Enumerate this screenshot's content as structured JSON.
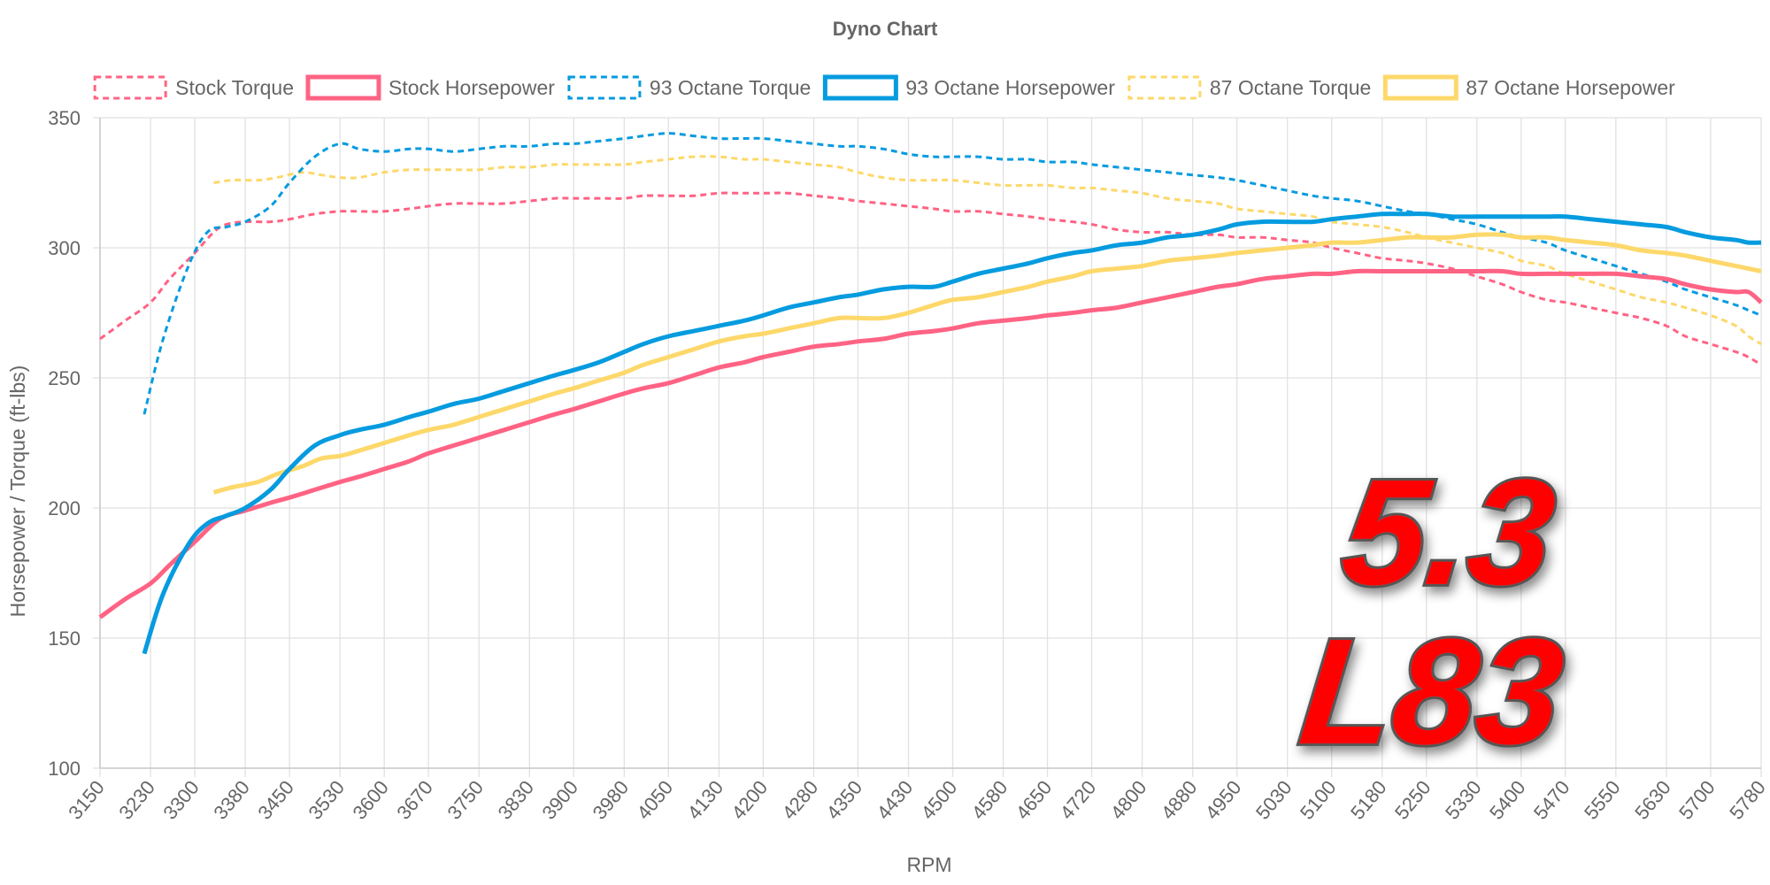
{
  "colors": {
    "stock": "#ff6384",
    "octane93": "#059bdf",
    "octane87": "#fdd86a",
    "badge_fill": "#ff0000",
    "badge_outline": "#555555",
    "text": "#666666"
  },
  "badge": {
    "line1": "5.3",
    "line2": "L83"
  },
  "chart_data": {
    "type": "line",
    "title": "Dyno Chart",
    "xlabel": "RPM",
    "ylabel": "Horsepower / Torque (ft-lbs)",
    "ylim": [
      100,
      350
    ],
    "yticks": [
      100,
      150,
      200,
      250,
      300,
      350
    ],
    "grid": true,
    "legend_position": "top",
    "categories": [
      "3150",
      "3230",
      "3300",
      "3380",
      "3450",
      "3530",
      "3600",
      "3670",
      "3750",
      "3830",
      "3900",
      "3980",
      "4050",
      "4130",
      "4200",
      "4280",
      "4350",
      "4430",
      "4500",
      "4580",
      "4650",
      "4720",
      "4800",
      "4880",
      "4950",
      "5030",
      "5100",
      "5180",
      "5250",
      "5330",
      "5400",
      "5470",
      "5550",
      "5630",
      "5700",
      "5780"
    ],
    "series": [
      {
        "name": "Stock Torque",
        "color_key": "stock",
        "dashed": true,
        "x": [
          3150,
          3190,
          3230,
          3260,
          3300,
          3330,
          3350,
          3380,
          3420,
          3450,
          3490,
          3530,
          3560,
          3600,
          3640,
          3670,
          3710,
          3750,
          3790,
          3830,
          3870,
          3900,
          3940,
          3980,
          4010,
          4050,
          4090,
          4130,
          4170,
          4200,
          4240,
          4280,
          4320,
          4350,
          4390,
          4430,
          4470,
          4500,
          4540,
          4580,
          4620,
          4650,
          4690,
          4720,
          4760,
          4800,
          4840,
          4880,
          4920,
          4950,
          4990,
          5030,
          5070,
          5100,
          5140,
          5180,
          5220,
          5250,
          5290,
          5330,
          5370,
          5400,
          5440,
          5470,
          5510,
          5550,
          5590,
          5630,
          5660,
          5700,
          5740,
          5760,
          5780
        ],
        "values": [
          265,
          272,
          279,
          288,
          298,
          306,
          309,
          310,
          310,
          311,
          313,
          314,
          314,
          314,
          315,
          316,
          317,
          317,
          317,
          318,
          319,
          319,
          319,
          319,
          320,
          320,
          320,
          321,
          321,
          321,
          321,
          320,
          319,
          318,
          317,
          316,
          315,
          314,
          314,
          313,
          312,
          311,
          310,
          309,
          307,
          306,
          306,
          305,
          305,
          304,
          304,
          303,
          302,
          300,
          298,
          296,
          295,
          294,
          292,
          289,
          286,
          283,
          280,
          279,
          277,
          275,
          273,
          270,
          266,
          263,
          260,
          258,
          255
        ]
      },
      {
        "name": "Stock Horsepower",
        "color_key": "stock",
        "dashed": false,
        "x": [
          3150,
          3190,
          3230,
          3260,
          3300,
          3330,
          3350,
          3380,
          3420,
          3450,
          3490,
          3530,
          3560,
          3600,
          3640,
          3670,
          3710,
          3750,
          3790,
          3830,
          3870,
          3900,
          3940,
          3980,
          4010,
          4050,
          4090,
          4130,
          4170,
          4200,
          4240,
          4280,
          4320,
          4350,
          4390,
          4430,
          4470,
          4500,
          4540,
          4580,
          4620,
          4650,
          4690,
          4720,
          4760,
          4800,
          4840,
          4880,
          4920,
          4950,
          4990,
          5030,
          5070,
          5100,
          5140,
          5180,
          5220,
          5250,
          5290,
          5330,
          5370,
          5400,
          5440,
          5470,
          5510,
          5550,
          5590,
          5630,
          5660,
          5700,
          5740,
          5760,
          5780
        ],
        "values": [
          158,
          165,
          171,
          178,
          187,
          194,
          197,
          199,
          202,
          204,
          207,
          210,
          212,
          215,
          218,
          221,
          224,
          227,
          230,
          233,
          236,
          238,
          241,
          244,
          246,
          248,
          251,
          254,
          256,
          258,
          260,
          262,
          263,
          264,
          265,
          267,
          268,
          269,
          271,
          272,
          273,
          274,
          275,
          276,
          277,
          279,
          281,
          283,
          285,
          286,
          288,
          289,
          290,
          290,
          291,
          291,
          291,
          291,
          291,
          291,
          291,
          290,
          290,
          290,
          290,
          290,
          289,
          288,
          286,
          284,
          283,
          283,
          279
        ]
      },
      {
        "name": "93 Octane Torque",
        "color_key": "octane93",
        "dashed": true,
        "x": [
          3220,
          3250,
          3290,
          3320,
          3350,
          3380,
          3420,
          3450,
          3490,
          3530,
          3560,
          3600,
          3640,
          3670,
          3710,
          3750,
          3790,
          3830,
          3870,
          3900,
          3940,
          3980,
          4010,
          4050,
          4090,
          4130,
          4170,
          4200,
          4240,
          4280,
          4320,
          4350,
          4390,
          4430,
          4470,
          4500,
          4540,
          4580,
          4620,
          4650,
          4690,
          4720,
          4760,
          4800,
          4840,
          4880,
          4920,
          4950,
          4990,
          5030,
          5070,
          5100,
          5140,
          5180,
          5220,
          5250,
          5290,
          5330,
          5370,
          5400,
          5440,
          5470,
          5510,
          5550,
          5590,
          5630,
          5660,
          5700,
          5740,
          5760,
          5780
        ],
        "values": [
          236,
          265,
          293,
          306,
          308,
          310,
          316,
          325,
          335,
          340,
          338,
          337,
          338,
          338,
          337,
          338,
          339,
          339,
          340,
          340,
          341,
          342,
          343,
          344,
          343,
          342,
          342,
          342,
          341,
          340,
          339,
          339,
          338,
          336,
          335,
          335,
          335,
          334,
          334,
          333,
          333,
          332,
          331,
          330,
          329,
          328,
          327,
          326,
          324,
          322,
          320,
          319,
          318,
          316,
          314,
          313,
          311,
          309,
          306,
          304,
          302,
          299,
          296,
          293,
          290,
          287,
          284,
          281,
          278,
          276,
          274
        ]
      },
      {
        "name": "93 Octane Horsepower",
        "color_key": "octane93",
        "dashed": false,
        "x": [
          3220,
          3250,
          3290,
          3320,
          3350,
          3380,
          3420,
          3450,
          3490,
          3530,
          3560,
          3600,
          3640,
          3670,
          3710,
          3750,
          3790,
          3830,
          3870,
          3900,
          3940,
          3980,
          4010,
          4050,
          4090,
          4130,
          4170,
          4200,
          4240,
          4280,
          4320,
          4350,
          4390,
          4430,
          4470,
          4500,
          4540,
          4580,
          4620,
          4650,
          4690,
          4720,
          4760,
          4800,
          4840,
          4880,
          4920,
          4950,
          4990,
          5030,
          5070,
          5100,
          5140,
          5180,
          5220,
          5250,
          5290,
          5330,
          5370,
          5400,
          5440,
          5470,
          5510,
          5550,
          5590,
          5630,
          5660,
          5700,
          5740,
          5760,
          5780
        ],
        "values": [
          144,
          167,
          186,
          194,
          197,
          200,
          207,
          215,
          224,
          228,
          230,
          232,
          235,
          237,
          240,
          242,
          245,
          248,
          251,
          253,
          256,
          260,
          263,
          266,
          268,
          270,
          272,
          274,
          277,
          279,
          281,
          282,
          284,
          285,
          285,
          287,
          290,
          292,
          294,
          296,
          298,
          299,
          301,
          302,
          304,
          305,
          307,
          309,
          310,
          310,
          310,
          311,
          312,
          313,
          313,
          313,
          312,
          312,
          312,
          312,
          312,
          312,
          311,
          310,
          309,
          308,
          306,
          304,
          303,
          302,
          302
        ]
      },
      {
        "name": "87 Octane Torque",
        "color_key": "octane87",
        "dashed": true,
        "x": [
          3330,
          3360,
          3400,
          3430,
          3470,
          3500,
          3530,
          3560,
          3600,
          3640,
          3670,
          3710,
          3750,
          3790,
          3830,
          3870,
          3900,
          3940,
          3980,
          4010,
          4050,
          4090,
          4130,
          4170,
          4200,
          4240,
          4280,
          4320,
          4350,
          4390,
          4430,
          4470,
          4500,
          4540,
          4580,
          4620,
          4650,
          4690,
          4720,
          4760,
          4800,
          4840,
          4880,
          4920,
          4950,
          4990,
          5030,
          5070,
          5100,
          5140,
          5180,
          5220,
          5250,
          5290,
          5330,
          5370,
          5400,
          5440,
          5470,
          5510,
          5550,
          5590,
          5630,
          5660,
          5700,
          5740,
          5760,
          5780
        ],
        "values": [
          325,
          326,
          326,
          327,
          329,
          328,
          327,
          327,
          329,
          330,
          330,
          330,
          330,
          331,
          331,
          332,
          332,
          332,
          332,
          333,
          334,
          335,
          335,
          334,
          334,
          333,
          332,
          331,
          329,
          327,
          326,
          326,
          326,
          325,
          324,
          324,
          324,
          323,
          323,
          322,
          321,
          319,
          318,
          317,
          315,
          314,
          313,
          312,
          310,
          309,
          308,
          306,
          304,
          302,
          300,
          298,
          295,
          293,
          290,
          287,
          284,
          281,
          279,
          277,
          274,
          270,
          266,
          263
        ]
      },
      {
        "name": "87 Octane Horsepower",
        "color_key": "octane87",
        "dashed": false,
        "x": [
          3330,
          3360,
          3400,
          3430,
          3470,
          3500,
          3530,
          3560,
          3600,
          3640,
          3670,
          3710,
          3750,
          3790,
          3830,
          3870,
          3900,
          3940,
          3980,
          4010,
          4050,
          4090,
          4130,
          4170,
          4200,
          4240,
          4280,
          4320,
          4350,
          4390,
          4430,
          4470,
          4500,
          4540,
          4580,
          4620,
          4650,
          4690,
          4720,
          4760,
          4800,
          4840,
          4880,
          4920,
          4950,
          4990,
          5030,
          5070,
          5100,
          5140,
          5180,
          5220,
          5250,
          5290,
          5330,
          5370,
          5400,
          5440,
          5470,
          5510,
          5550,
          5590,
          5630,
          5660,
          5700,
          5740,
          5760,
          5780
        ],
        "values": [
          206,
          208,
          210,
          213,
          216,
          219,
          220,
          222,
          225,
          228,
          230,
          232,
          235,
          238,
          241,
          244,
          246,
          249,
          252,
          255,
          258,
          261,
          264,
          266,
          267,
          269,
          271,
          273,
          273,
          273,
          275,
          278,
          280,
          281,
          283,
          285,
          287,
          289,
          291,
          292,
          293,
          295,
          296,
          297,
          298,
          299,
          300,
          301,
          302,
          302,
          303,
          304,
          304,
          304,
          305,
          305,
          304,
          304,
          303,
          302,
          301,
          299,
          298,
          297,
          295,
          293,
          292,
          291
        ]
      }
    ]
  }
}
